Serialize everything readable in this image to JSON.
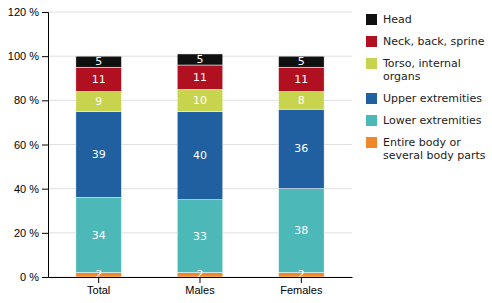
{
  "chart_data": {
    "type": "bar",
    "stacked": true,
    "categories": [
      "Total",
      "Males",
      "Females"
    ],
    "series": [
      {
        "name": "Entire body or\nseveral body parts",
        "color": "#f0882a",
        "values": [
          2,
          2,
          2
        ]
      },
      {
        "name": "Lower extremities",
        "color": "#4db8b8",
        "values": [
          34,
          33,
          38
        ]
      },
      {
        "name": "Upper extremities",
        "color": "#2060a0",
        "values": [
          39,
          40,
          36
        ]
      },
      {
        "name": "Torso, internal\norgans",
        "color": "#c8d44e",
        "values": [
          9,
          10,
          8
        ]
      },
      {
        "name": "Neck, back, sprine",
        "color": "#b01020",
        "values": [
          11,
          11,
          11
        ]
      },
      {
        "name": "Head",
        "color": "#101010",
        "values": [
          5,
          5,
          5
        ]
      }
    ],
    "ylim": [
      0,
      120
    ],
    "yticks": [
      {
        "value": 0,
        "label": "0 %"
      },
      {
        "value": 20,
        "label": "20 %"
      },
      {
        "value": 40,
        "label": "40 %"
      },
      {
        "value": 60,
        "label": "60 %"
      },
      {
        "value": 80,
        "label": "80 %"
      },
      {
        "value": 100,
        "label": "100 %"
      },
      {
        "value": 120,
        "label": "120 %"
      }
    ],
    "grid": true,
    "legend": "right",
    "data_labels": true
  }
}
